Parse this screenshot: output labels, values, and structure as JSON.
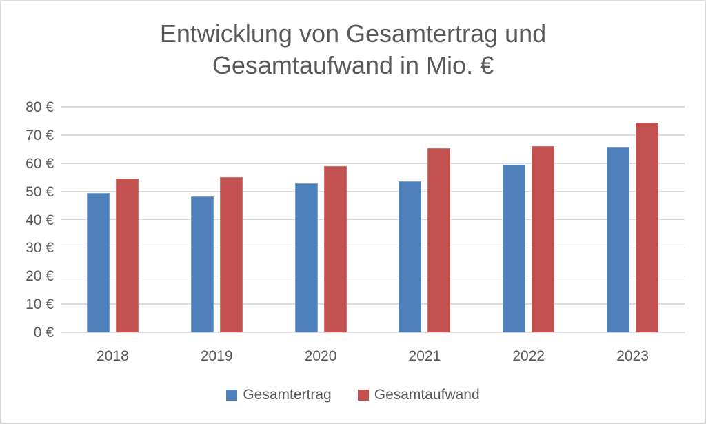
{
  "chart_data": {
    "type": "bar",
    "title": "Entwicklung von Gesamtertrag und Gesamtaufwand in Mio. €",
    "title_lines": [
      "Entwicklung von Gesamtertrag und",
      "Gesamtaufwand in Mio. €"
    ],
    "categories": [
      "2018",
      "2019",
      "2020",
      "2021",
      "2022",
      "2023"
    ],
    "series": [
      {
        "name": "Gesamtertrag",
        "color": "#4E81BC",
        "border_color": "#7EA1CD",
        "values": [
          49.5,
          48.2,
          52.8,
          53.6,
          59.5,
          65.9
        ]
      },
      {
        "name": "Gesamtaufwand",
        "color": "#C1504E",
        "border_color": "#CE7370",
        "values": [
          54.5,
          55.0,
          59.0,
          65.3,
          66.1,
          74.3
        ]
      }
    ],
    "ylim": [
      0,
      80
    ],
    "ytick_step": 10,
    "ytick_labels": [
      "0 €",
      "10 €",
      "20 €",
      "30 €",
      "40 €",
      "50 €",
      "60 €",
      "70 €",
      "80 €"
    ],
    "xlabel": "",
    "ylabel": "",
    "grid": true,
    "legend_position": "bottom",
    "colors": {
      "text": "#595959",
      "gridline": "#DBDBDB",
      "background": "#FFFFFF",
      "canvas_border": "#D9D9D9"
    }
  }
}
